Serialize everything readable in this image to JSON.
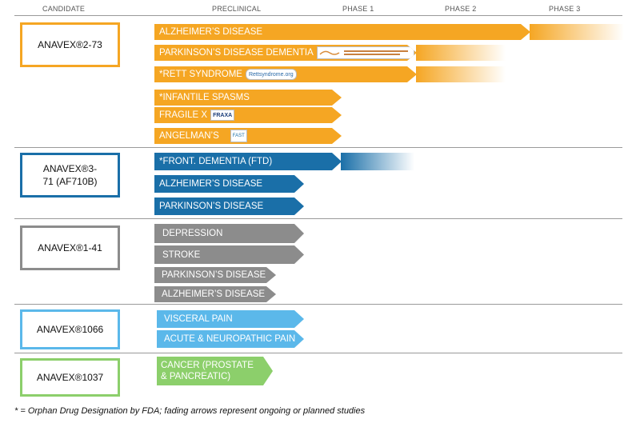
{
  "headers": {
    "candidate": "CANDIDATE",
    "preclinical": "PRECLINICAL",
    "phase1": "PHASE 1",
    "phase2": "PHASE 2",
    "phase3": "PHASE 3"
  },
  "candidates": [
    {
      "name": "ANAVEX®2-73",
      "color": "#f5a623"
    },
    {
      "name": "ANAVEX®3-71 (AF710B)",
      "color": "#1a6fa8"
    },
    {
      "name": "ANAVEX®1-41",
      "color": "#8c8c8c"
    },
    {
      "name": "ANAVEX®1066",
      "color": "#5bb8ea"
    },
    {
      "name": "ANAVEX®1037",
      "color": "#8ccf6b"
    }
  ],
  "programs": {
    "a273": [
      {
        "label": "ALZHEIMER’S DISEASE",
        "stage_reached": "Phase 3",
        "ongoing": true
      },
      {
        "label": "PARKINSON’S DISEASE DEMENTIA",
        "stage_reached": "Phase 2",
        "ongoing": true,
        "logo": "michael-j-fox-foundation-logo"
      },
      {
        "label": "*RETT SYNDROME",
        "stage_reached": "Phase 2",
        "ongoing": true,
        "logo": "rettsyndrome-org-logo",
        "logo_text": "Rettsyndrome.org"
      },
      {
        "label": "*INFANTILE SPASMS",
        "stage_reached": "Preclinical"
      },
      {
        "label": "FRAGILE X",
        "stage_reached": "Preclinical",
        "logo": "fraxa-logo",
        "logo_text": "FRAXA"
      },
      {
        "label": "ANGELMAN’S",
        "stage_reached": "Preclinical",
        "logo": "fast-logo",
        "logo_text": "FAST"
      }
    ],
    "a371": [
      {
        "label": "*FRONT. DEMENTIA (FTD)",
        "stage_reached": "Phase 1",
        "ongoing": true
      },
      {
        "label": "ALZHEIMER’S DISEASE",
        "stage_reached": "Preclinical"
      },
      {
        "label": "PARKINSON’S DISEASE",
        "stage_reached": "Preclinical"
      }
    ],
    "a141": [
      {
        "label": "DEPRESSION",
        "stage_reached": "Preclinical"
      },
      {
        "label": "STROKE",
        "stage_reached": "Preclinical"
      },
      {
        "label": "PARKINSON’S DISEASE",
        "stage_reached": "Preclinical"
      },
      {
        "label": "ALZHEIMER’S DISEASE",
        "stage_reached": "Preclinical"
      }
    ],
    "a1066": [
      {
        "label": "VISCERAL PAIN",
        "stage_reached": "Preclinical"
      },
      {
        "label": "ACUTE & NEUROPATHIC PAIN",
        "stage_reached": "Preclinical"
      }
    ],
    "a1037": [
      {
        "label": "CANCER (PROSTATE & PANCREATIC)",
        "stage_reached": "Preclinical"
      }
    ]
  },
  "footer": "* = Orphan Drug Designation by FDA; fading arrows represent ongoing or planned studies"
}
